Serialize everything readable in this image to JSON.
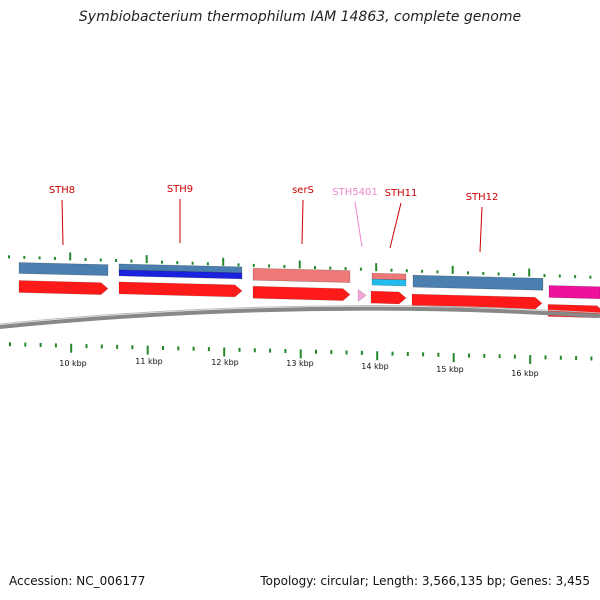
{
  "title": "Symbiobacterium thermophilum IAM 14863, complete genome",
  "footer": {
    "accession": "Accession: NC_006177",
    "summary": "Topology: circular; Length: 3,566,135 bp; Genes: 3,455"
  },
  "colors": {
    "label_default": "#cc0000",
    "label_light": "#ee88cc",
    "leader": "#cc0000",
    "tick": "#22882a",
    "backbone": "#888888",
    "cds_red": "#ff1a1a",
    "gene_steel": "#4a7fb0",
    "gene_blue": "#1a22dd",
    "gene_salmon": "#ee7777",
    "gene_cyan": "#22bbee",
    "gene_magenta": "#ee1199",
    "gene_pink": "#f4a6d8"
  },
  "scale_labels": [
    "10 kbp",
    "11 kbp",
    "12 kbp",
    "13 kbp",
    "14 kbp",
    "15 kbp",
    "16 kbp"
  ],
  "gene_labels": [
    {
      "text": "STH8",
      "style": "default"
    },
    {
      "text": "STH9",
      "style": "default"
    },
    {
      "text": "serS",
      "style": "default"
    },
    {
      "text": "STH5401",
      "style": "light"
    },
    {
      "text": "STH11",
      "style": "default"
    },
    {
      "text": "STH12",
      "style": "default"
    }
  ]
}
